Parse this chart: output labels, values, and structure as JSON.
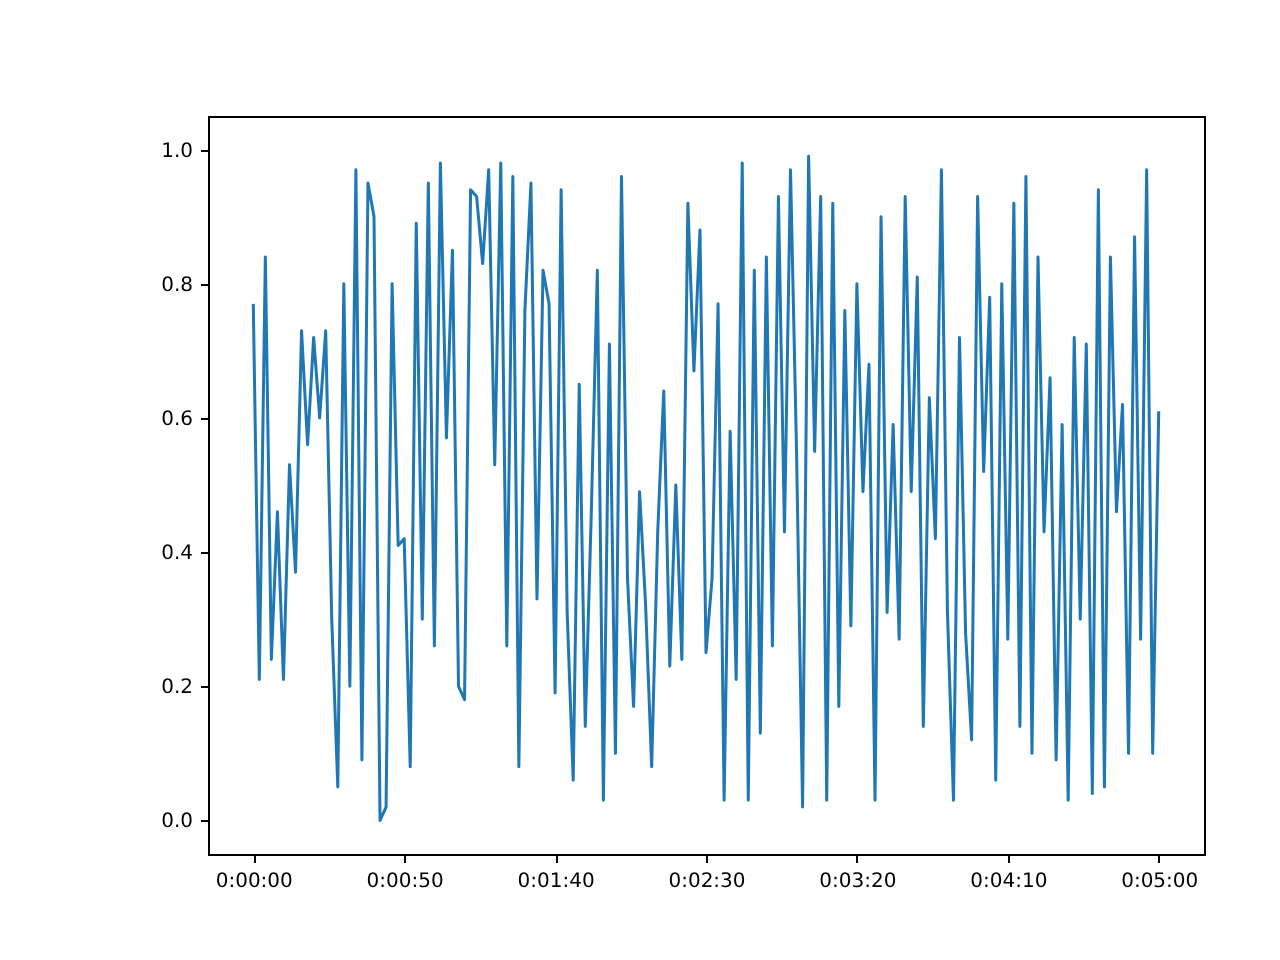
{
  "chart_data": {
    "type": "line",
    "x": [
      0,
      2,
      4,
      6,
      8,
      10,
      12,
      14,
      16,
      18,
      20,
      22,
      24,
      26,
      28,
      30,
      32,
      34,
      36,
      38,
      40,
      42,
      44,
      46,
      48,
      50,
      52,
      54,
      56,
      58,
      60,
      62,
      64,
      66,
      68,
      70,
      72,
      74,
      76,
      78,
      80,
      82,
      84,
      86,
      88,
      90,
      92,
      94,
      96,
      98,
      100,
      102,
      104,
      106,
      108,
      110,
      112,
      114,
      116,
      118,
      120,
      122,
      124,
      126,
      128,
      130,
      132,
      134,
      136,
      138,
      140,
      142,
      144,
      146,
      148,
      150,
      152,
      154,
      156,
      158,
      160,
      162,
      164,
      166,
      168,
      170,
      172,
      174,
      176,
      178,
      180,
      182,
      184,
      186,
      188,
      190,
      192,
      194,
      196,
      198,
      200,
      202,
      204,
      206,
      208,
      210,
      212,
      214,
      216,
      218,
      220,
      222,
      224,
      226,
      228,
      230,
      232,
      234,
      236,
      238,
      240,
      242,
      244,
      246,
      248,
      250,
      252,
      254,
      256,
      258,
      260,
      262,
      264,
      266,
      268,
      270,
      272,
      274,
      276,
      278,
      280,
      282,
      284,
      286,
      288,
      290,
      292,
      294,
      296,
      298,
      300
    ],
    "series": [
      {
        "color": "#1f77b4",
        "values": [
          0.77,
          0.21,
          0.84,
          0.24,
          0.46,
          0.21,
          0.53,
          0.37,
          0.73,
          0.56,
          0.72,
          0.6,
          0.73,
          0.3,
          0.05,
          0.8,
          0.2,
          0.97,
          0.09,
          0.95,
          0.9,
          0.0,
          0.02,
          0.8,
          0.41,
          0.42,
          0.08,
          0.89,
          0.3,
          0.95,
          0.26,
          0.98,
          0.57,
          0.85,
          0.2,
          0.18,
          0.94,
          0.93,
          0.83,
          0.97,
          0.53,
          0.98,
          0.26,
          0.96,
          0.08,
          0.76,
          0.95,
          0.33,
          0.82,
          0.77,
          0.19,
          0.94,
          0.31,
          0.06,
          0.65,
          0.14,
          0.46,
          0.82,
          0.03,
          0.71,
          0.1,
          0.96,
          0.36,
          0.17,
          0.49,
          0.32,
          0.08,
          0.43,
          0.64,
          0.23,
          0.5,
          0.24,
          0.92,
          0.67,
          0.88,
          0.25,
          0.36,
          0.77,
          0.03,
          0.58,
          0.21,
          0.98,
          0.03,
          0.82,
          0.13,
          0.84,
          0.26,
          0.93,
          0.43,
          0.97,
          0.55,
          0.02,
          0.99,
          0.55,
          0.93,
          0.03,
          0.92,
          0.17,
          0.76,
          0.29,
          0.8,
          0.49,
          0.68,
          0.03,
          0.9,
          0.31,
          0.59,
          0.27,
          0.93,
          0.49,
          0.81,
          0.14,
          0.63,
          0.42,
          0.97,
          0.31,
          0.03,
          0.72,
          0.28,
          0.12,
          0.93,
          0.52,
          0.78,
          0.06,
          0.8,
          0.27,
          0.92,
          0.14,
          0.96,
          0.1,
          0.84,
          0.43,
          0.66,
          0.09,
          0.59,
          0.03,
          0.72,
          0.3,
          0.71,
          0.04,
          0.94,
          0.05,
          0.84,
          0.46,
          0.62,
          0.1,
          0.87,
          0.27,
          0.97,
          0.1,
          0.61
        ]
      }
    ],
    "xlim": [
      -15,
      315
    ],
    "xticks": [
      {
        "value": 0,
        "label": "0:00:00"
      },
      {
        "value": 50,
        "label": "0:00:50"
      },
      {
        "value": 100,
        "label": "0:01:40"
      },
      {
        "value": 150,
        "label": "0:02:30"
      },
      {
        "value": 200,
        "label": "0:03:20"
      },
      {
        "value": 250,
        "label": "0:04:10"
      },
      {
        "value": 300,
        "label": "0:05:00"
      }
    ],
    "ylim": [
      -0.05,
      1.05
    ],
    "yticks": [
      {
        "value": 0,
        "label": "0.0"
      },
      {
        "value": 0.2,
        "label": "0.2"
      },
      {
        "value": 0.4,
        "label": "0.4"
      },
      {
        "value": 0.6,
        "label": "0.6"
      },
      {
        "value": 0.8,
        "label": "0.8"
      },
      {
        "value": 1,
        "label": "1.0"
      }
    ]
  }
}
